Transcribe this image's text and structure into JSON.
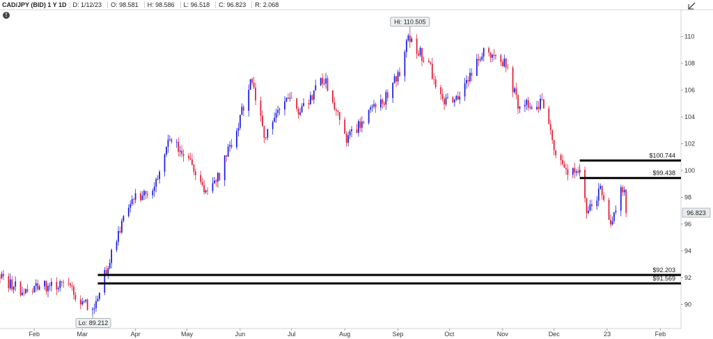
{
  "header": {
    "symbol": "CAD/JPY (BID) 1 Y 1D",
    "date": "D: 1/12/23",
    "open": "O: 98.581",
    "high": "H: 98.586",
    "low": "L: 96.518",
    "close": "C: 96.823",
    "range": "R: 2.068"
  },
  "icons": {
    "info": "info-icon",
    "tool": "draw-tool-icon"
  },
  "chart_data": {
    "type": "candlestick",
    "colors": {
      "up": "#1f1fe0",
      "down": "#e0203a",
      "levels": "#000000"
    },
    "y_axis": {
      "ticks": [
        90,
        92,
        94,
        96,
        98,
        100,
        102,
        104,
        106,
        108,
        110
      ],
      "ylim": [
        88.2,
        112.0
      ],
      "position": "right"
    },
    "x_axis": {
      "labels": [
        "Feb",
        "Mar",
        "Apr",
        "May",
        "Jun",
        "Jul",
        "Aug",
        "Sep",
        "Oct",
        "Nov",
        "Dec",
        "23",
        "Feb"
      ]
    },
    "price_path": [
      {
        "d": "2022-01-12",
        "v": 92.0
      },
      {
        "d": "2022-01-25",
        "v": 91.0
      },
      {
        "d": "2022-02-10",
        "v": 91.4
      },
      {
        "d": "2022-02-22",
        "v": 91.2
      },
      {
        "d": "2022-03-07",
        "v": 89.4
      },
      {
        "d": "2022-03-14",
        "v": 92.2
      },
      {
        "d": "2022-03-22",
        "v": 95.2
      },
      {
        "d": "2022-03-29",
        "v": 97.8
      },
      {
        "d": "2022-04-11",
        "v": 98.4
      },
      {
        "d": "2022-04-21",
        "v": 102.3
      },
      {
        "d": "2022-05-03",
        "v": 100.8
      },
      {
        "d": "2022-05-12",
        "v": 98.2
      },
      {
        "d": "2022-05-20",
        "v": 99.6
      },
      {
        "d": "2022-05-31",
        "v": 103.6
      },
      {
        "d": "2022-06-08",
        "v": 106.8
      },
      {
        "d": "2022-06-15",
        "v": 102.4
      },
      {
        "d": "2022-06-28",
        "v": 105.7
      },
      {
        "d": "2022-07-06",
        "v": 104.2
      },
      {
        "d": "2022-07-20",
        "v": 106.9
      },
      {
        "d": "2022-07-28",
        "v": 104.0
      },
      {
        "d": "2022-08-02",
        "v": 102.3
      },
      {
        "d": "2022-08-15",
        "v": 104.3
      },
      {
        "d": "2022-08-23",
        "v": 105.0
      },
      {
        "d": "2022-09-02",
        "v": 107.3
      },
      {
        "d": "2022-09-07",
        "v": 110.0
      },
      {
        "d": "2022-09-20",
        "v": 107.6
      },
      {
        "d": "2022-09-26",
        "v": 105.3
      },
      {
        "d": "2022-10-04",
        "v": 105.4
      },
      {
        "d": "2022-10-11",
        "v": 106.4
      },
      {
        "d": "2022-10-21",
        "v": 108.9
      },
      {
        "d": "2022-11-03",
        "v": 108.0
      },
      {
        "d": "2022-11-10",
        "v": 105.0
      },
      {
        "d": "2022-11-24",
        "v": 104.9
      },
      {
        "d": "2022-12-01",
        "v": 101.8
      },
      {
        "d": "2022-12-09",
        "v": 100.0
      },
      {
        "d": "2022-12-16",
        "v": 100.3
      },
      {
        "d": "2022-12-20",
        "v": 97.0
      },
      {
        "d": "2022-12-28",
        "v": 98.4
      },
      {
        "d": "2023-01-04",
        "v": 96.0
      },
      {
        "d": "2023-01-09",
        "v": 98.4
      },
      {
        "d": "2023-01-11",
        "v": 98.5
      },
      {
        "d": "2023-01-12",
        "v": 96.82
      }
    ],
    "hi_label": "Hi: 110.505",
    "hi_value": 110.505,
    "hi_date": "2022-09-08",
    "lo_label": "Lo: 89.212",
    "lo_value": 89.212,
    "lo_date": "2022-03-07",
    "last_price_label": "96.823",
    "last_price": 96.823,
    "levels": [
      {
        "label": "$100.744",
        "value": 100.744,
        "from": "2022-12-16"
      },
      {
        "label": "$99.438",
        "value": 99.438,
        "from": "2022-12-16"
      },
      {
        "label": "$92.203",
        "value": 92.203,
        "from": "2022-03-10"
      },
      {
        "label": "$91.569",
        "value": 91.569,
        "from": "2022-03-10"
      }
    ],
    "last_bar": {
      "date": "2023-01-12",
      "open": 98.581,
      "high": 98.586,
      "low": 96.518,
      "close": 96.823
    }
  }
}
